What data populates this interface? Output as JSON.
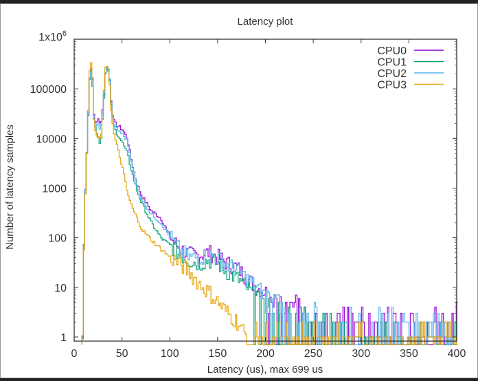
{
  "chart_data": {
    "type": "line",
    "title": "Latency plot",
    "xlabel": "Latency (us), max 699 us",
    "ylabel": "Number of latency samples",
    "xlim": [
      0,
      400
    ],
    "ylim": [
      1,
      1000000
    ],
    "yscale": "log",
    "grid": false,
    "legend_position": "top-right",
    "x_ticks": [
      "0",
      "50",
      "100",
      "150",
      "200",
      "250",
      "300",
      "350",
      "400"
    ],
    "y_ticks": [
      "1",
      "10",
      "100",
      "1000",
      "10000",
      "100000",
      "1x10^6"
    ],
    "x": [
      8,
      10,
      12,
      14,
      16,
      18,
      20,
      22,
      24,
      26,
      28,
      30,
      32,
      34,
      36,
      38,
      40,
      42,
      45,
      50,
      55,
      60,
      65,
      70,
      80,
      90,
      100,
      110,
      120,
      130,
      140,
      150,
      160,
      170,
      180,
      190,
      200,
      220,
      240,
      260,
      280,
      300,
      320,
      340,
      360,
      380,
      400
    ],
    "series": [
      {
        "name": "CPU0",
        "color": "#9400d3",
        "values": [
          1,
          300,
          3000,
          30000,
          300000,
          250000,
          30000,
          20000,
          25000,
          20000,
          25000,
          60000,
          200000,
          280000,
          200000,
          60000,
          25000,
          20000,
          18000,
          15000,
          10000,
          3000,
          1200,
          700,
          350,
          250,
          100,
          60,
          45,
          45,
          50,
          40,
          30,
          25,
          15,
          10,
          8,
          4,
          3,
          2,
          2,
          2,
          2,
          3,
          2,
          2,
          3
        ]
      },
      {
        "name": "CPU1",
        "color": "#009e73",
        "values": [
          1,
          250,
          3000,
          30000,
          300000,
          200000,
          25000,
          15000,
          12000,
          8000,
          12000,
          50000,
          200000,
          300000,
          200000,
          50000,
          20000,
          15000,
          12000,
          8000,
          5000,
          2000,
          900,
          500,
          200,
          100,
          70,
          45,
          35,
          30,
          35,
          30,
          20,
          15,
          10,
          6,
          4,
          3,
          2,
          2,
          2,
          1,
          1,
          1,
          1,
          1,
          1
        ]
      },
      {
        "name": "CPU2",
        "color": "#56b4e9",
        "values": [
          1,
          280,
          3000,
          30000,
          300000,
          220000,
          28000,
          18000,
          20000,
          15000,
          20000,
          55000,
          200000,
          290000,
          210000,
          55000,
          22000,
          18000,
          15000,
          12000,
          9000,
          3000,
          1100,
          600,
          300,
          200,
          100,
          55,
          40,
          40,
          45,
          38,
          28,
          22,
          15,
          10,
          7,
          4,
          3,
          2,
          2,
          2,
          2,
          2,
          2,
          2,
          2
        ]
      },
      {
        "name": "CPU3",
        "color": "#e69f00",
        "values": [
          1,
          200,
          3000,
          40000,
          380000,
          300000,
          25000,
          12000,
          10000,
          10000,
          12000,
          60000,
          250000,
          300000,
          180000,
          40000,
          15000,
          10000,
          6000,
          2500,
          800,
          400,
          250,
          150,
          90,
          60,
          40,
          30,
          20,
          12,
          8,
          5,
          3,
          2,
          1,
          1,
          1,
          1,
          1,
          1,
          1,
          1,
          1,
          1,
          1,
          1,
          1
        ]
      }
    ]
  }
}
